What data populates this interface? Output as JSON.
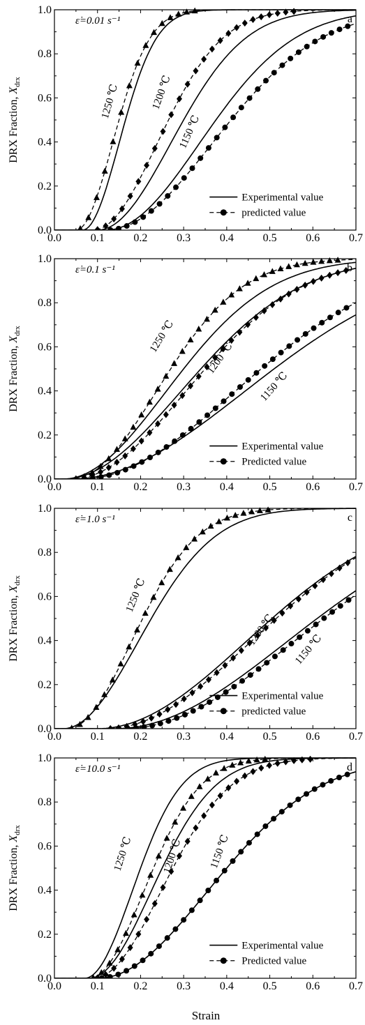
{
  "x_axis_label": "Strain",
  "chart_data": [
    {
      "type": "line",
      "panel_letter": "a",
      "rate_label": "ε̇=0.01 s⁻¹",
      "xlim": [
        0.0,
        0.7
      ],
      "ylim": [
        0.0,
        1.0
      ],
      "xticks": [
        "0.0",
        "0.1",
        "0.2",
        "0.3",
        "0.4",
        "0.5",
        "0.6",
        "0.7"
      ],
      "yticks": [
        "0.0",
        "0.2",
        "0.4",
        "0.6",
        "0.8",
        "1.0"
      ],
      "ylabel": "DRX Fraction, X",
      "ylabel_sub": "drx",
      "legend": [
        "Experimental value",
        "predicted value"
      ],
      "grid": false,
      "curves": [
        {
          "name": "1250 ℃",
          "marker": "triangle",
          "experimental": {
            "x0": 0.065,
            "t50": 0.165,
            "w": 0.045
          },
          "predicted": {
            "x0": 0.05,
            "t50": 0.15,
            "w": 0.04
          }
        },
        {
          "name": "1200 ℃",
          "marker": "diamond",
          "experimental": {
            "x0": 0.1,
            "t50": 0.3,
            "w": 0.09
          },
          "predicted": {
            "x0": 0.09,
            "t50": 0.265,
            "w": 0.08
          }
        },
        {
          "name": "1150 ℃",
          "marker": "circle",
          "experimental": {
            "x0": 0.12,
            "t50": 0.375,
            "w": 0.075
          },
          "predicted": {
            "x0": 0.12,
            "t50": 0.41,
            "w": 0.085
          }
        }
      ]
    },
    {
      "type": "line",
      "panel_letter": "b",
      "rate_label": "ε̇=0.1 s⁻¹",
      "xlim": [
        0.0,
        0.7
      ],
      "ylim": [
        0.0,
        1.0
      ],
      "xticks": [
        "0.0",
        "0.1",
        "0.2",
        "0.3",
        "0.4",
        "0.5",
        "0.6",
        "0.7"
      ],
      "yticks": [
        "0.0",
        "0.2",
        "0.4",
        "0.6",
        "0.8",
        "1.0"
      ],
      "ylabel": "DRX Fraction, X",
      "ylabel_sub": "drx",
      "legend": [
        "Experimental value",
        "Predicted value"
      ],
      "grid": false,
      "curves": [
        {
          "name": "1250 ℃",
          "marker": "triangle",
          "experimental": {
            "x0": 0.02,
            "t50": 0.3,
            "w": 0.1
          },
          "predicted": {
            "x0": 0.04,
            "t50": 0.27,
            "w": 0.075
          }
        },
        {
          "name": "1200 ℃",
          "marker": "diamond",
          "experimental": {
            "x0": 0.02,
            "t50": 0.34,
            "w": 0.11
          },
          "predicted": {
            "x0": 0.04,
            "t50": 0.35,
            "w": 0.09
          }
        },
        {
          "name": "1150 ℃",
          "marker": "circle",
          "experimental": {
            "x0": 0.04,
            "t50": 0.51,
            "w": 0.13
          },
          "predicted": {
            "x0": 0.06,
            "t50": 0.48,
            "w": 0.11
          }
        }
      ]
    },
    {
      "type": "line",
      "panel_letter": "c",
      "rate_label": "ε̇=1.0 s⁻¹",
      "xlim": [
        0.0,
        0.7
      ],
      "ylim": [
        0.0,
        1.0
      ],
      "xticks": [
        "0.0",
        "0.1",
        "0.2",
        "0.3",
        "0.4",
        "0.5",
        "0.6",
        "0.7"
      ],
      "yticks": [
        "0.0",
        "0.2",
        "0.4",
        "0.6",
        "0.8",
        "1.0"
      ],
      "ylabel": "DRX Fraction, X",
      "ylabel_sub": "drx",
      "legend": [
        "Experimental value",
        "predicted value"
      ],
      "grid": false,
      "curves": [
        {
          "name": "1250 ℃",
          "marker": "triangle",
          "experimental": {
            "x0": 0.02,
            "t50": 0.225,
            "w": 0.06
          },
          "predicted": {
            "x0": 0.03,
            "t50": 0.205,
            "w": 0.05
          }
        },
        {
          "name": "1200 ℃",
          "marker": "diamond",
          "experimental": {
            "x0": 0.1,
            "t50": 0.505,
            "w": 0.1
          },
          "predicted": {
            "x0": 0.12,
            "t50": 0.515,
            "w": 0.1
          }
        },
        {
          "name": "1150 ℃",
          "marker": "circle",
          "experimental": {
            "x0": 0.14,
            "t50": 0.61,
            "w": 0.105
          },
          "predicted": {
            "x0": 0.16,
            "t50": 0.625,
            "w": 0.11
          }
        }
      ]
    },
    {
      "type": "line",
      "panel_letter": "d",
      "rate_label": "ε̇=10.0 s⁻¹",
      "xlim": [
        0.0,
        0.7
      ],
      "ylim": [
        0.0,
        1.0
      ],
      "xticks": [
        "0.0",
        "0.1",
        "0.2",
        "0.3",
        "0.4",
        "0.5",
        "0.6",
        "0.7"
      ],
      "yticks": [
        "0.0",
        "0.2",
        "0.4",
        "0.6",
        "0.8",
        "1.0"
      ],
      "ylabel": "DRX Fraction, X",
      "ylabel_sub": "drx",
      "legend": [
        "Experimental value",
        "Predicted value"
      ],
      "grid": false,
      "curves": [
        {
          "name": "1250 ℃",
          "marker": "triangle",
          "experimental": {
            "x0": 0.07,
            "t50": 0.2,
            "w": 0.03
          },
          "predicted": {
            "x0": 0.08,
            "t50": 0.23,
            "w": 0.035
          }
        },
        {
          "name": "1200 ℃",
          "marker": "diamond",
          "experimental": {
            "x0": 0.08,
            "t50": 0.25,
            "w": 0.04
          },
          "predicted": {
            "x0": 0.09,
            "t50": 0.275,
            "w": 0.04
          }
        },
        {
          "name": "1150 ℃",
          "marker": "circle",
          "experimental": {
            "x0": 0.1,
            "t50": 0.4,
            "w": 0.075
          },
          "predicted": {
            "x0": 0.1,
            "t50": 0.4,
            "w": 0.075
          }
        }
      ]
    }
  ]
}
